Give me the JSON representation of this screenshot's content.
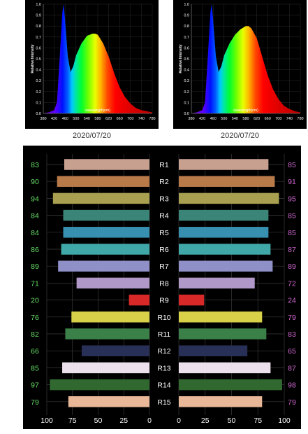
{
  "spectra": [
    {
      "date": "2020/07/20",
      "xlabel": "wavelength(nm)",
      "ylabel": "Relative Intensity",
      "x_ticks": [
        380,
        420,
        460,
        500,
        540,
        580,
        620,
        660,
        700,
        740,
        780
      ],
      "y_ticks": [
        "0.0",
        "0.1",
        "0.2",
        "0.3",
        "0.4",
        "0.5",
        "0.6",
        "0.7",
        "0.8",
        "0.9",
        "1.0"
      ]
    },
    {
      "date": "2020/07/20",
      "xlabel": "wavelength(nm)",
      "ylabel": "Relative Intensity",
      "x_ticks": [
        380,
        420,
        460,
        500,
        540,
        580,
        620,
        660,
        700,
        740,
        780
      ],
      "y_ticks": [
        "0.0",
        "0.1",
        "0.2",
        "0.3",
        "0.4",
        "0.5",
        "0.6",
        "0.7",
        "0.8",
        "0.9",
        "1.0"
      ]
    }
  ],
  "chart_data": [
    {
      "type": "area",
      "x": [
        380,
        400,
        420,
        430,
        440,
        450,
        455,
        460,
        470,
        480,
        490,
        500,
        520,
        540,
        560,
        570,
        580,
        600,
        620,
        640,
        660,
        680,
        700,
        720,
        740,
        760,
        780
      ],
      "y": [
        0.0,
        0.01,
        0.03,
        0.1,
        0.5,
        0.93,
        1.0,
        0.85,
        0.52,
        0.38,
        0.43,
        0.53,
        0.64,
        0.71,
        0.73,
        0.73,
        0.72,
        0.64,
        0.52,
        0.37,
        0.24,
        0.15,
        0.09,
        0.05,
        0.03,
        0.02,
        0.01
      ],
      "xlabel": "wavelength(nm)",
      "ylabel": "Relative Intensity",
      "xlim": [
        380,
        780
      ],
      "ylim": [
        0,
        1.0
      ]
    },
    {
      "type": "area",
      "x": [
        380,
        400,
        420,
        430,
        440,
        450,
        455,
        460,
        470,
        480,
        490,
        500,
        520,
        540,
        560,
        580,
        590,
        600,
        620,
        640,
        660,
        680,
        700,
        720,
        740,
        760,
        780
      ],
      "y": [
        0.0,
        0.01,
        0.03,
        0.1,
        0.5,
        0.93,
        1.0,
        0.85,
        0.52,
        0.38,
        0.43,
        0.53,
        0.64,
        0.72,
        0.77,
        0.8,
        0.8,
        0.78,
        0.69,
        0.52,
        0.35,
        0.22,
        0.13,
        0.07,
        0.04,
        0.02,
        0.01
      ],
      "xlabel": "wavelength(nm)",
      "ylabel": "Relative Intensity",
      "xlim": [
        380,
        780
      ],
      "ylim": [
        0,
        1.0
      ]
    },
    {
      "type": "bar",
      "orientation": "horizontal-mirrored",
      "categories": [
        "R1",
        "R2",
        "R3",
        "R4",
        "R5",
        "R6",
        "R7",
        "R8",
        "R9",
        "R10",
        "R11",
        "R12",
        "R13",
        "R14",
        "R15"
      ],
      "series": [
        {
          "values": [
            83,
            90,
            94,
            84,
            84,
            86,
            89,
            71,
            20,
            76,
            82,
            66,
            85,
            97,
            79
          ]
        },
        {
          "values": [
            85,
            91,
            95,
            85,
            85,
            87,
            89,
            72,
            24,
            79,
            83,
            65,
            87,
            98,
            79
          ]
        }
      ],
      "colors": [
        "#c8a090",
        "#b87a48",
        "#a8a050",
        "#3a8478",
        "#3890b0",
        "#40a8a8",
        "#9090c8",
        "#b098c8",
        "#d82828",
        "#d8d048",
        "#3a8048",
        "#283058",
        "#ece0ec",
        "#306830",
        "#e8b898"
      ],
      "left_axis_ticks": [
        "100",
        "75",
        "50",
        "25",
        "0"
      ],
      "right_axis_ticks": [
        "0",
        "25",
        "50",
        "75",
        "100"
      ],
      "xlim": [
        0,
        100
      ],
      "grid": true,
      "label_colors": {
        "left": "#66dd66",
        "right": "#cc66cc"
      }
    }
  ]
}
